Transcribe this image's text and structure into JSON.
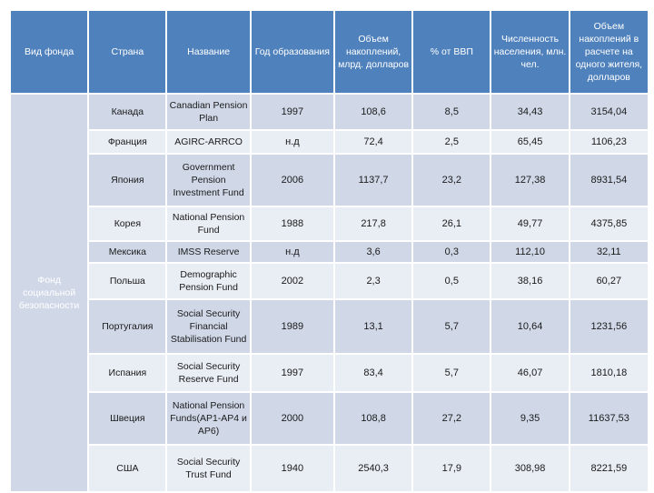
{
  "headers": {
    "fund_type": "Вид фонда",
    "country": "Страна",
    "name": "Название",
    "year": "Год образования",
    "assets": "Объем накоплений, млрд. долларов",
    "gdp_share": "% от ВВП",
    "population": "Численность населения, млн. чел.",
    "per_capita": "Объем накоплений в расчете на одного жителя, долларов"
  },
  "fund_type_value": "Фонд социальной безопасности",
  "rows": [
    {
      "country": "Канада",
      "name": "Canadian Pension Plan",
      "year": "1997",
      "assets": "108,6",
      "gdp_share": "8,5",
      "population": "34,43",
      "per_capita": "3154,04"
    },
    {
      "country": "Франция",
      "name": "AGIRC-ARRCO",
      "year": "н.д",
      "assets": "72,4",
      "gdp_share": "2,5",
      "population": "65,45",
      "per_capita": "1106,23"
    },
    {
      "country": "Япония",
      "name": "Government Pension Investment Fund",
      "year": "2006",
      "assets": "1137,7",
      "gdp_share": "23,2",
      "population": "127,38",
      "per_capita": "8931,54"
    },
    {
      "country": "Корея",
      "name": "National Pension Fund",
      "year": "1988",
      "assets": "217,8",
      "gdp_share": "26,1",
      "population": "49,77",
      "per_capita": "4375,85"
    },
    {
      "country": "Мексика",
      "name": "IMSS Reserve",
      "year": "н.д",
      "assets": "3,6",
      "gdp_share": "0,3",
      "population": "112,10",
      "per_capita": "32,11"
    },
    {
      "country": "Польша",
      "name": "Demographic Pension Fund",
      "year": "2002",
      "assets": "2,3",
      "gdp_share": "0,5",
      "population": "38,16",
      "per_capita": "60,27"
    },
    {
      "country": "Португалия",
      "name": "Social Security Financial Stabilisation Fund",
      "year": "1989",
      "assets": "13,1",
      "gdp_share": "5,7",
      "population": "10,64",
      "per_capita": "1231,56"
    },
    {
      "country": "Испания",
      "name": "Social Security Reserve Fund",
      "year": "1997",
      "assets": "83,4",
      "gdp_share": "5,7",
      "population": "46,07",
      "per_capita": "1810,18"
    },
    {
      "country": "Швеция",
      "name": "National Pension Funds(AP1-AP4 и AP6)",
      "year": "2000",
      "assets": "108,8",
      "gdp_share": "27,2",
      "population": "9,35",
      "per_capita": "11637,53"
    },
    {
      "country": "США",
      "name": "Social Security Trust Fund",
      "year": "1940",
      "assets": "2540,3",
      "gdp_share": "17,9",
      "population": "308,98",
      "per_capita": "8221,59"
    }
  ]
}
